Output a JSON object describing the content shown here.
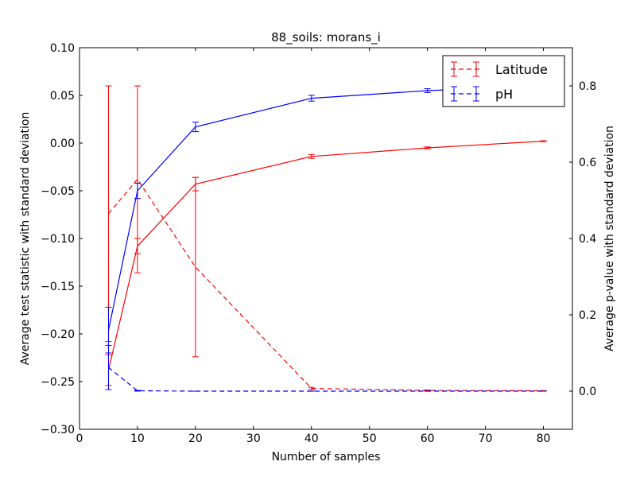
{
  "chart_data": {
    "type": "line",
    "title": "88_soils: morans_i",
    "xlabel": "Number of samples",
    "ylabel_left": "Average test statistic with standard deviation",
    "ylabel_right": "Average p-value with standard deviation",
    "xlim": [
      0,
      85
    ],
    "ylim_left": [
      -0.3,
      0.1
    ],
    "ylim_right": [
      -0.1,
      0.9
    ],
    "x_ticks": [
      "0",
      "10",
      "20",
      "30",
      "40",
      "50",
      "60",
      "70",
      "80"
    ],
    "y_left_ticks": [
      "−0.30",
      "−0.25",
      "−0.20",
      "−0.15",
      "−0.10",
      "−0.05",
      "0.00",
      "0.05",
      "0.10"
    ],
    "y_right_ticks": [
      "0.0",
      "0.2",
      "0.4",
      "0.6",
      "0.8"
    ],
    "legend_position": "top-right",
    "grid": false,
    "series": [
      {
        "name": "Latitude",
        "color": "#ff0000",
        "test_statistic": {
          "axis": "left",
          "x": [
            5,
            10,
            20,
            40,
            60,
            80
          ],
          "y": [
            -0.238,
            -0.108,
            -0.043,
            -0.014,
            -0.005,
            0.002
          ],
          "yerr": [
            0.016,
            0.008,
            0.007,
            0.002,
            0.001,
            0.0005
          ]
        },
        "p_value": {
          "axis": "right",
          "x": [
            5,
            10,
            20,
            40,
            60,
            80
          ],
          "y": [
            0.465,
            0.555,
            0.325,
            0.007,
            0.002,
            0.001
          ],
          "yerr": [
            0.335,
            0.245,
            0.235,
            0.003,
            0.001,
            0.0005
          ]
        }
      },
      {
        "name": "pH",
        "color": "#0000ff",
        "test_statistic": {
          "axis": "left",
          "x": [
            5,
            10,
            20,
            40,
            60,
            80
          ],
          "y": [
            -0.196,
            -0.05,
            0.017,
            0.047,
            0.055,
            0.06
          ],
          "yerr": [
            0.024,
            0.008,
            0.005,
            0.003,
            0.002,
            0.001
          ]
        },
        "p_value": {
          "axis": "right",
          "x": [
            5,
            10,
            20,
            40,
            60,
            80
          ],
          "y": [
            0.062,
            0.001,
            0.0,
            0.0,
            0.0,
            0.0
          ],
          "yerr": [
            0.058,
            0.001,
            0.0,
            0.0,
            0.0,
            0.0
          ]
        }
      }
    ]
  }
}
